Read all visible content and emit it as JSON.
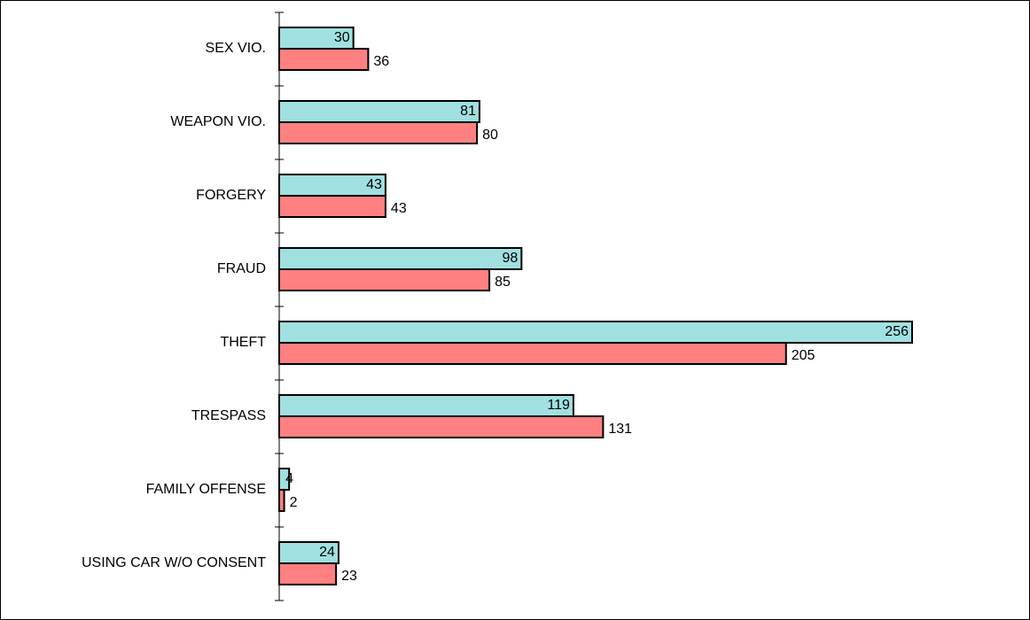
{
  "chart_data": {
    "type": "bar",
    "orientation": "horizontal",
    "categories": [
      "SEX VIO.",
      "WEAPON VIO.",
      "FORGERY",
      "FRAUD",
      "THEFT",
      "TRESPASS",
      "FAMILY OFFENSE",
      "USING CAR W/O CONSENT"
    ],
    "series": [
      {
        "color": "#a0e0e0",
        "values": [
          30,
          81,
          43,
          98,
          256,
          119,
          4,
          24
        ]
      },
      {
        "color": "#ff8080",
        "values": [
          36,
          80,
          43,
          85,
          205,
          131,
          2,
          23
        ]
      }
    ]
  }
}
